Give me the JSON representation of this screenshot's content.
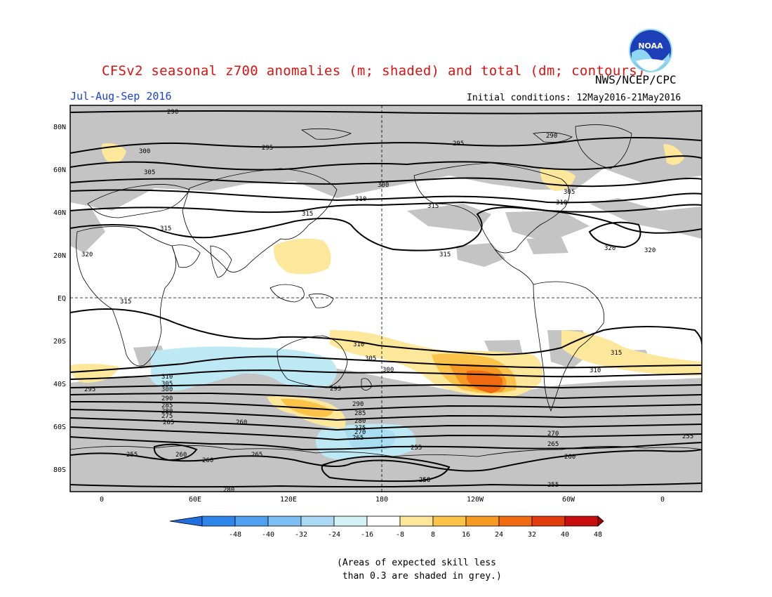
{
  "header": {
    "title": "CFSv2 seasonal z700 anomalies (m; shaded) and total (dm; contours)",
    "agency": "NWS/NCEP/CPC",
    "season": "Jul-Aug-Sep 2016",
    "initial_conditions": "Initial conditions: 12May2016-21May2016",
    "logo_text": "NOAA"
  },
  "axes": {
    "lat_labels": [
      "80N",
      "60N",
      "40N",
      "20N",
      "EQ",
      "20S",
      "40S",
      "60S",
      "80S"
    ],
    "lon_labels": [
      "0",
      "60E",
      "120E",
      "180",
      "120W",
      "60W",
      "0"
    ]
  },
  "colorbar": {
    "ticks": [
      "-48",
      "-40",
      "-32",
      "-24",
      "-16",
      "-8",
      "8",
      "16",
      "24",
      "32",
      "40",
      "48"
    ],
    "colors": [
      "#1f6fe0",
      "#2f86ea",
      "#4fa0f0",
      "#7dbef5",
      "#aad8f5",
      "#d2f2f7",
      "#ffffff",
      "#fde79a",
      "#fbc34a",
      "#f79a24",
      "#ef6a10",
      "#e23a0a",
      "#c80f0f",
      "#a00000"
    ]
  },
  "footnote": "(Areas of expected skill less\n than 0.3 are shaded in grey.)",
  "contour_labels": [
    "290",
    "295",
    "300",
    "305",
    "310",
    "315",
    "320",
    "290",
    "295",
    "300",
    "305",
    "310",
    "315",
    "320",
    "315",
    "315",
    "315",
    "310",
    "305",
    "300",
    "295",
    "290",
    "285",
    "280",
    "275",
    "270",
    "265",
    "260",
    "255",
    "250",
    "255",
    "260",
    "265",
    "310",
    "305",
    "300",
    "295",
    "290",
    "285",
    "280",
    "275",
    "270",
    "265",
    "260",
    "255",
    "310",
    "315",
    "320",
    "250",
    "255",
    "260",
    "265",
    "280"
  ]
}
